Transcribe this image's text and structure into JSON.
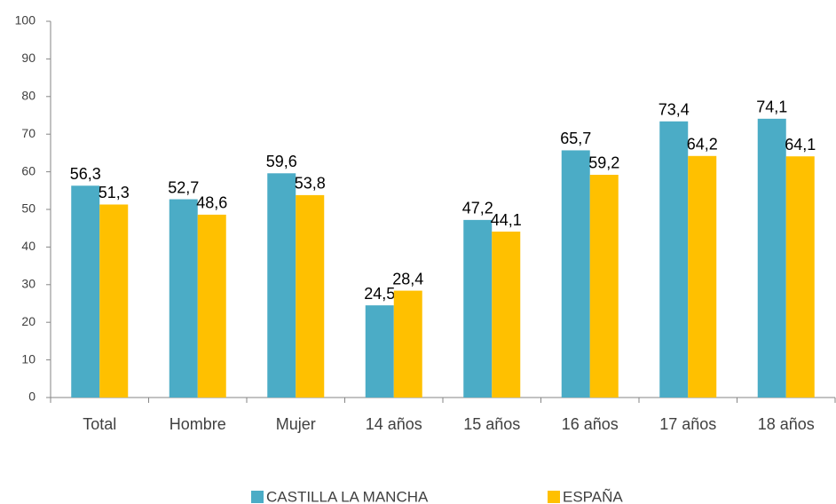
{
  "chart_data": {
    "type": "bar",
    "categories": [
      "Total",
      "Hombre",
      "Mujer",
      "14 años",
      "15 años",
      "16 años",
      "17 años",
      "18 años"
    ],
    "series": [
      {
        "name": "CASTILLA LA MANCHA",
        "color": "#4bacc6",
        "values": [
          56.3,
          52.7,
          59.6,
          24.5,
          47.2,
          65.7,
          73.4,
          74.1
        ],
        "value_labels": [
          "56,3",
          "52,7",
          "59,6",
          "24,5",
          "47,2",
          "65,7",
          "73,4",
          "74,1"
        ]
      },
      {
        "name": "ESPAÑA",
        "color": "#ffc000",
        "values": [
          51.3,
          48.6,
          53.8,
          28.4,
          44.1,
          59.2,
          64.2,
          64.1
        ],
        "value_labels": [
          "51,3",
          "48,6",
          "53,8",
          "28,4",
          "44,1",
          "59,2",
          "64,2",
          "64,1"
        ]
      }
    ],
    "ylim": [
      0,
      100
    ],
    "yticks": [
      0,
      10,
      20,
      30,
      40,
      50,
      60,
      70,
      80,
      90,
      100
    ],
    "grid": false,
    "legend": "bottom"
  }
}
